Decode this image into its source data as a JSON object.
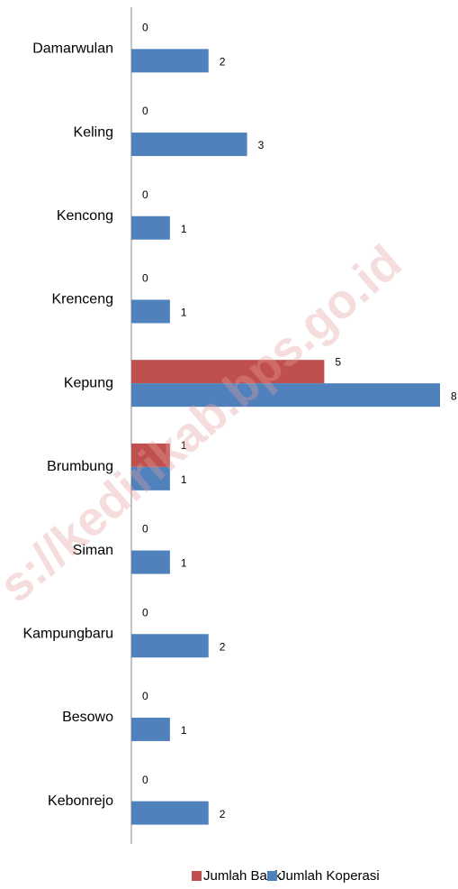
{
  "chart_data": {
    "type": "hbar",
    "categories": [
      "Damarwulan",
      "Keling",
      "Kencong",
      "Krenceng",
      "Kepung",
      "Brumbung",
      "Siman",
      "Kampungbaru",
      "Besowo",
      "Kebonrejo"
    ],
    "series": [
      {
        "name": "Jumlah Bank",
        "color": "#c0504d",
        "values": [
          0,
          0,
          0,
          0,
          5,
          1,
          0,
          0,
          0,
          0
        ]
      },
      {
        "name": "Jumlah Koperasi",
        "color": "#4f81bd",
        "values": [
          2,
          3,
          1,
          1,
          8,
          1,
          1,
          2,
          1,
          2
        ]
      }
    ],
    "xlim": [
      0,
      8
    ],
    "legend": "bottom",
    "watermark": "s://kedirikab.bps.go.id"
  }
}
